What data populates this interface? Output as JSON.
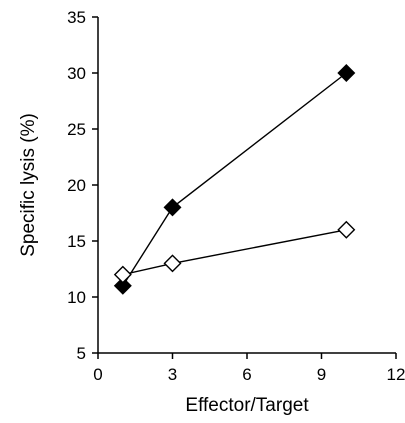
{
  "chart_data": {
    "type": "line",
    "title": "",
    "xlabel": "Effector/Target",
    "ylabel": "Specific lysis (%)",
    "xlim": [
      0,
      12
    ],
    "ylim": [
      5,
      35
    ],
    "xticks": [
      0,
      3,
      6,
      9,
      12
    ],
    "yticks": [
      5,
      10,
      15,
      20,
      25,
      30,
      35
    ],
    "grid": false,
    "legend": "none",
    "series": [
      {
        "marker": "filled-diamond",
        "color": "#000000",
        "x": [
          1,
          3,
          10
        ],
        "y": [
          11,
          18,
          30
        ]
      },
      {
        "marker": "open-diamond",
        "color": "#000000",
        "x": [
          1,
          3,
          10
        ],
        "y": [
          12,
          13,
          16
        ]
      }
    ]
  }
}
